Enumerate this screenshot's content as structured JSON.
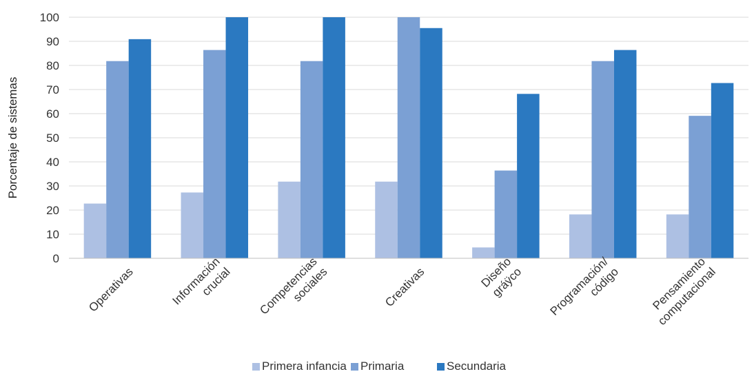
{
  "chart_data": {
    "type": "bar",
    "ylabel": "Porcentaje de sistemas",
    "xlabel": "",
    "ylim": [
      0,
      100
    ],
    "yticks": [
      0,
      10,
      20,
      30,
      40,
      50,
      60,
      70,
      80,
      90,
      100
    ],
    "grid": true,
    "legend_position": "bottom",
    "categories": [
      [
        "Operativas"
      ],
      [
        "Información",
        "crucial"
      ],
      [
        "Competencias",
        "sociales"
      ],
      [
        "Creativas"
      ],
      [
        "Diseño",
        "gráÿco"
      ],
      [
        "Programación/",
        "código"
      ],
      [
        "Pensamiento",
        "computacional"
      ]
    ],
    "series": [
      {
        "name": "Primera infancia",
        "color": "#adc0e3",
        "values": [
          22.7,
          27.3,
          31.8,
          31.8,
          4.5,
          18.2,
          18.2
        ]
      },
      {
        "name": "Primaria",
        "color": "#7ba0d4",
        "values": [
          81.8,
          86.4,
          81.8,
          100,
          36.4,
          81.8,
          59.1
        ]
      },
      {
        "name": "Secundaria",
        "color": "#2b79c1",
        "values": [
          90.9,
          100,
          100,
          95.5,
          68.2,
          86.4,
          72.7
        ]
      }
    ]
  }
}
